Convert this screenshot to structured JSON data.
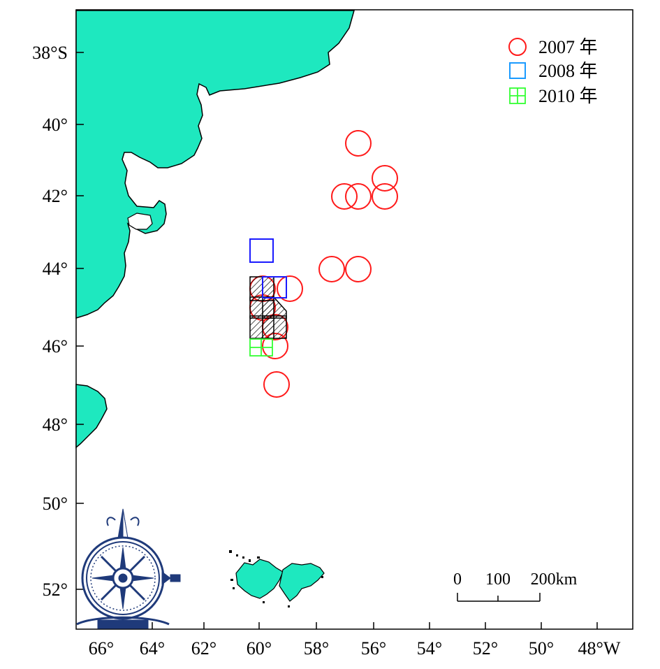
{
  "colors": {
    "land": "#1ee8bf",
    "frame": "#000000",
    "marker_2007": "#ff1a1a",
    "marker_2008_a": "#1a1aff",
    "marker_2008_b": "#1a9aff",
    "marker_2010": "#33ff33",
    "compass": "#1f3a7a"
  },
  "axes": {
    "lon_labels": [
      "66°",
      "64°",
      "62°",
      "60°",
      "58°",
      "56°",
      "54°",
      "52°",
      "50°",
      "48°W"
    ],
    "lat_labels": [
      "38°S",
      "40°",
      "42°",
      "44°",
      "46°",
      "48°",
      "50°",
      "52°"
    ]
  },
  "legend": [
    {
      "label": "2007 年",
      "marker": "circle"
    },
    {
      "label": "2008 年",
      "marker": "square"
    },
    {
      "label": "2010 年",
      "marker": "grid-square"
    }
  ],
  "scale_bar": {
    "labels": [
      "0",
      "100",
      "200km"
    ]
  },
  "icons": [
    "compass-rose-icon"
  ]
}
